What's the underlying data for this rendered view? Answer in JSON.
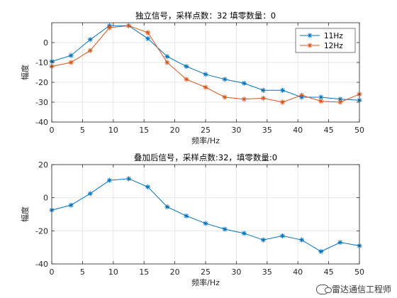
{
  "chart_data": [
    {
      "type": "line",
      "title": "独立信号，采样点数：32 填零数量：0",
      "xlabel": "频率/Hz",
      "ylabel": "幅度",
      "xlim": [
        0,
        50
      ],
      "ylim": [
        -40,
        10
      ],
      "xticks": [
        0,
        5,
        10,
        15,
        20,
        25,
        30,
        35,
        40,
        45,
        50
      ],
      "yticks": [
        -40,
        -30,
        -20,
        -10,
        0
      ],
      "grid": true,
      "legend_position": "top-right",
      "x": [
        0,
        3.125,
        6.25,
        9.375,
        12.5,
        15.625,
        18.75,
        21.875,
        25,
        28.125,
        31.25,
        34.375,
        37.5,
        40.625,
        43.75,
        46.875,
        50
      ],
      "series": [
        {
          "name": "11Hz",
          "color": "#0072BD",
          "values": [
            -9.5,
            -6.5,
            1.5,
            8.5,
            8.5,
            2,
            -7,
            -12,
            -16,
            -18.5,
            -20.5,
            -24,
            -24,
            -27.5,
            -27.5,
            -28.5,
            -29
          ]
        },
        {
          "name": "12Hz",
          "color": "#D95319",
          "values": [
            -12,
            -10,
            -4,
            7.5,
            8.5,
            5,
            -10,
            -18.5,
            -22.5,
            -27.5,
            -28.5,
            -28,
            -30,
            -26.5,
            -29.5,
            -30,
            -26
          ]
        }
      ]
    },
    {
      "type": "line",
      "title": "叠加后信号，采样点数:32，填零数量:0",
      "xlabel": "频率/Hz",
      "ylabel": "幅度",
      "xlim": [
        0,
        50
      ],
      "ylim": [
        -40,
        20
      ],
      "xticks": [
        0,
        5,
        10,
        15,
        20,
        25,
        30,
        35,
        40,
        45,
        50
      ],
      "yticks": [
        -40,
        -20,
        0,
        20
      ],
      "grid": true,
      "x": [
        0,
        3.125,
        6.25,
        9.375,
        12.5,
        15.625,
        18.75,
        21.875,
        25,
        28.125,
        31.25,
        34.375,
        37.5,
        40.625,
        43.75,
        46.875,
        50
      ],
      "series": [
        {
          "color": "#0072BD",
          "values": [
            -7.5,
            -4.5,
            2.5,
            10.5,
            11.5,
            6.5,
            -5.5,
            -11,
            -15.5,
            -19,
            -21.5,
            -25.5,
            -23,
            -25.5,
            -32.5,
            -27,
            -29
          ]
        }
      ]
    }
  ],
  "watermark": {
    "text": "雷达通信工程师",
    "icon": "wechat-icon"
  }
}
